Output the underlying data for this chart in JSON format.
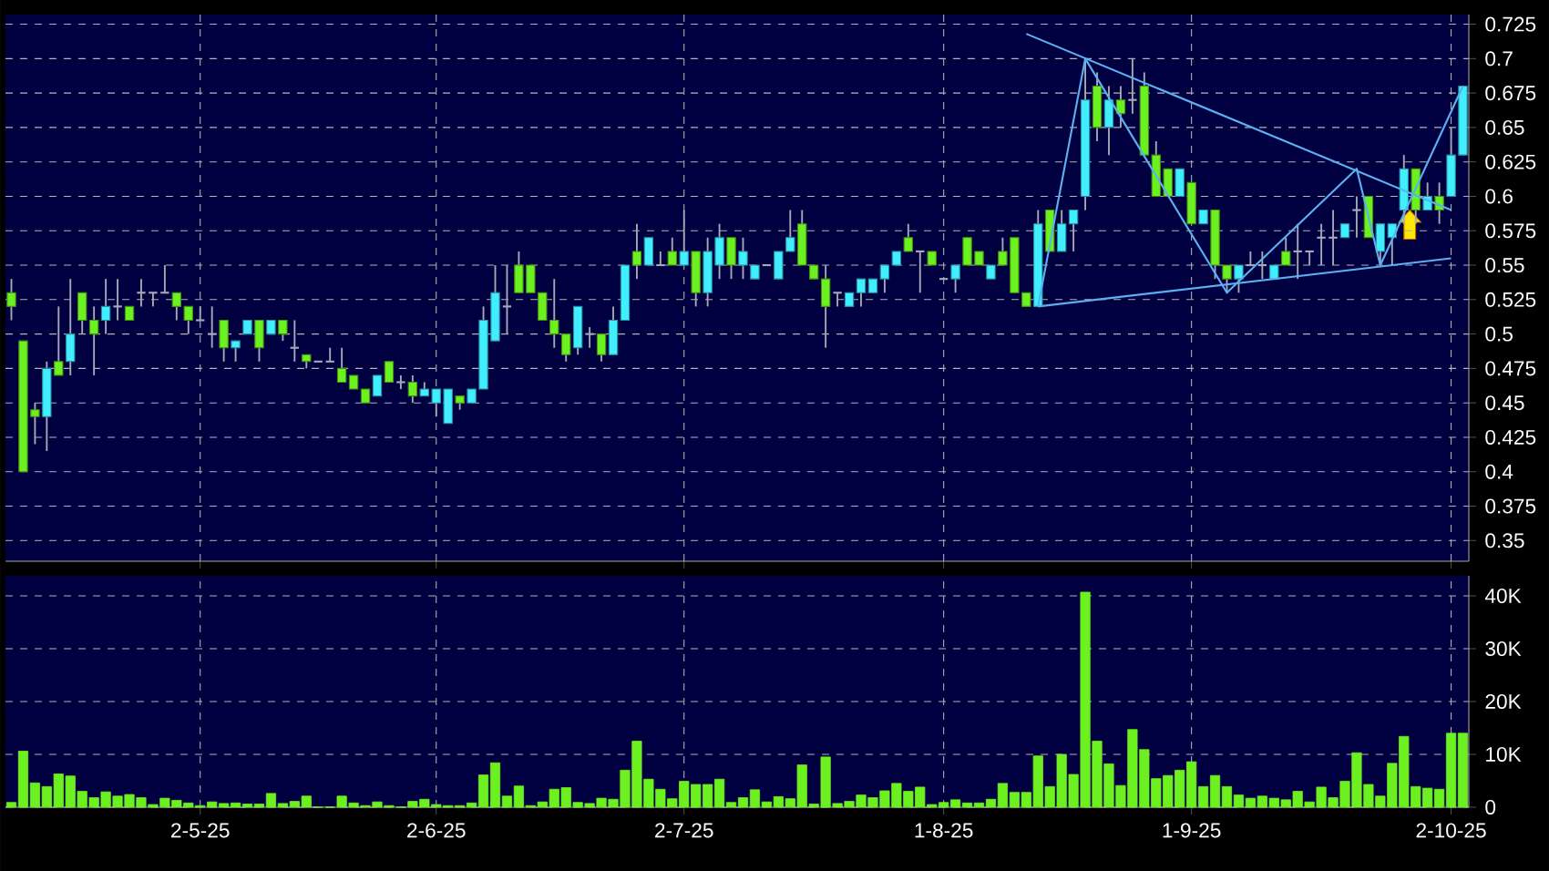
{
  "chart_data": [
    {
      "type": "candlestick",
      "categories": [
        null,
        null,
        null,
        null,
        null,
        null,
        null,
        null,
        null,
        null,
        null,
        null,
        null,
        null,
        null,
        null,
        null,
        null,
        null,
        null,
        null,
        null,
        null,
        null,
        null,
        null,
        null,
        null,
        null,
        null,
        null,
        null,
        null,
        null,
        null,
        null,
        null,
        null,
        null,
        null,
        null,
        null,
        null,
        null,
        null,
        null,
        null,
        null,
        null,
        null,
        null,
        null,
        null,
        null,
        null,
        null,
        null,
        null,
        null,
        null,
        null,
        null,
        null,
        null,
        null,
        null,
        null,
        null,
        null,
        null,
        null,
        null,
        null,
        null,
        null,
        null,
        null,
        null,
        null,
        null,
        null,
        null,
        null,
        null,
        null,
        null,
        null,
        null,
        null,
        null,
        null,
        null,
        null,
        null,
        null,
        null,
        null,
        null,
        null,
        null,
        null,
        null,
        null,
        null,
        null,
        null,
        null,
        null,
        null,
        null,
        null,
        null,
        null,
        null,
        null,
        null,
        null,
        null,
        null,
        null,
        null,
        null,
        null,
        null
      ],
      "ohlc": [
        [
          0.53,
          0.54,
          0.51,
          0.52
        ],
        [
          0.495,
          0.495,
          0.4,
          0.4
        ],
        [
          0.445,
          0.45,
          0.42,
          0.44
        ],
        [
          0.44,
          0.48,
          0.415,
          0.475
        ],
        [
          0.48,
          0.52,
          0.47,
          0.47
        ],
        [
          0.48,
          0.54,
          0.47,
          0.5
        ],
        [
          0.53,
          0.53,
          0.5,
          0.51
        ],
        [
          0.51,
          0.52,
          0.47,
          0.5
        ],
        [
          0.51,
          0.54,
          0.5,
          0.52
        ],
        [
          0.52,
          0.54,
          0.51,
          0.52
        ],
        [
          0.52,
          0.52,
          0.51,
          0.51
        ],
        [
          0.53,
          0.54,
          0.52,
          0.53
        ],
        [
          0.53,
          0.53,
          0.52,
          0.53
        ],
        [
          0.53,
          0.55,
          0.53,
          0.53
        ],
        [
          0.53,
          0.53,
          0.51,
          0.52
        ],
        [
          0.52,
          0.52,
          0.5,
          0.51
        ],
        [
          0.51,
          0.52,
          0.51,
          0.51
        ],
        [
          0.5,
          0.52,
          0.49,
          0.5
        ],
        [
          0.51,
          0.51,
          0.48,
          0.49
        ],
        [
          0.49,
          0.495,
          0.48,
          0.495
        ],
        [
          0.5,
          0.51,
          0.5,
          0.51
        ],
        [
          0.51,
          0.51,
          0.48,
          0.49
        ],
        [
          0.5,
          0.51,
          0.5,
          0.51
        ],
        [
          0.51,
          0.51,
          0.495,
          0.5
        ],
        [
          0.49,
          0.51,
          0.48,
          0.49
        ],
        [
          0.485,
          0.485,
          0.475,
          0.48
        ],
        [
          0.48,
          0.48,
          0.48,
          0.48
        ],
        [
          0.48,
          0.49,
          0.48,
          0.48
        ],
        [
          0.475,
          0.49,
          0.465,
          0.465
        ],
        [
          0.47,
          0.47,
          0.46,
          0.46
        ],
        [
          0.46,
          0.46,
          0.45,
          0.45
        ],
        [
          0.455,
          0.47,
          0.455,
          0.47
        ],
        [
          0.48,
          0.48,
          0.465,
          0.465
        ],
        [
          0.465,
          0.47,
          0.46,
          0.465
        ],
        [
          0.465,
          0.47,
          0.45,
          0.455
        ],
        [
          0.455,
          0.465,
          0.455,
          0.46
        ],
        [
          0.45,
          0.46,
          0.44,
          0.46
        ],
        [
          0.435,
          0.46,
          0.435,
          0.46
        ],
        [
          0.455,
          0.455,
          0.445,
          0.45
        ],
        [
          0.45,
          0.46,
          0.45,
          0.46
        ],
        [
          0.46,
          0.52,
          0.46,
          0.51
        ],
        [
          0.495,
          0.55,
          0.495,
          0.53
        ],
        [
          0.52,
          0.55,
          0.5,
          0.52
        ],
        [
          0.55,
          0.56,
          0.53,
          0.53
        ],
        [
          0.55,
          0.55,
          0.53,
          0.53
        ],
        [
          0.53,
          0.53,
          0.51,
          0.51
        ],
        [
          0.51,
          0.54,
          0.49,
          0.5
        ],
        [
          0.5,
          0.5,
          0.48,
          0.485
        ],
        [
          0.49,
          0.52,
          0.485,
          0.52
        ],
        [
          0.5,
          0.505,
          0.49,
          0.5
        ],
        [
          0.5,
          0.5,
          0.48,
          0.485
        ],
        [
          0.485,
          0.52,
          0.485,
          0.51
        ],
        [
          0.51,
          0.55,
          0.51,
          0.55
        ],
        [
          0.56,
          0.58,
          0.54,
          0.55
        ],
        [
          0.55,
          0.57,
          0.55,
          0.57
        ],
        [
          0.55,
          0.56,
          0.55,
          0.55
        ],
        [
          0.56,
          0.57,
          0.55,
          0.55
        ],
        [
          0.55,
          0.59,
          0.55,
          0.56
        ],
        [
          0.56,
          0.56,
          0.52,
          0.53
        ],
        [
          0.53,
          0.57,
          0.52,
          0.56
        ],
        [
          0.55,
          0.58,
          0.54,
          0.57
        ],
        [
          0.57,
          0.57,
          0.54,
          0.55
        ],
        [
          0.55,
          0.57,
          0.54,
          0.56
        ],
        [
          0.54,
          0.55,
          0.54,
          0.55
        ],
        [
          0.55,
          0.55,
          0.55,
          0.55
        ],
        [
          0.54,
          0.56,
          0.54,
          0.56
        ],
        [
          0.56,
          0.59,
          0.56,
          0.57
        ],
        [
          0.58,
          0.59,
          0.55,
          0.55
        ],
        [
          0.55,
          0.55,
          0.54,
          0.54
        ],
        [
          0.54,
          0.55,
          0.49,
          0.52
        ],
        [
          0.53,
          0.53,
          0.52,
          0.53
        ],
        [
          0.52,
          0.53,
          0.52,
          0.53
        ],
        [
          0.53,
          0.54,
          0.52,
          0.54
        ],
        [
          0.53,
          0.54,
          0.53,
          0.54
        ],
        [
          0.54,
          0.55,
          0.53,
          0.55
        ],
        [
          0.55,
          0.56,
          0.55,
          0.56
        ],
        [
          0.57,
          0.58,
          0.56,
          0.56
        ],
        [
          0.56,
          0.56,
          0.53,
          0.56
        ],
        [
          0.56,
          0.56,
          0.55,
          0.55
        ],
        [
          0.54,
          0.54,
          0.54,
          0.54
        ],
        [
          0.54,
          0.55,
          0.53,
          0.55
        ],
        [
          0.57,
          0.57,
          0.55,
          0.55
        ],
        [
          0.56,
          0.56,
          0.55,
          0.55
        ],
        [
          0.54,
          0.55,
          0.54,
          0.55
        ],
        [
          0.56,
          0.57,
          0.55,
          0.55
        ],
        [
          0.57,
          0.57,
          0.53,
          0.53
        ],
        [
          0.53,
          0.53,
          0.52,
          0.52
        ],
        [
          0.52,
          0.59,
          0.52,
          0.58
        ],
        [
          0.59,
          0.59,
          0.56,
          0.56
        ],
        [
          0.56,
          0.59,
          0.56,
          0.58
        ],
        [
          0.58,
          0.59,
          0.56,
          0.59
        ],
        [
          0.6,
          0.7,
          0.59,
          0.67
        ],
        [
          0.68,
          0.69,
          0.64,
          0.65
        ],
        [
          0.65,
          0.68,
          0.63,
          0.67
        ],
        [
          0.67,
          0.68,
          0.65,
          0.66
        ],
        [
          0.67,
          0.7,
          0.66,
          0.67
        ],
        [
          0.68,
          0.69,
          0.63,
          0.63
        ],
        [
          0.63,
          0.64,
          0.6,
          0.6
        ],
        [
          0.62,
          0.62,
          0.6,
          0.6
        ],
        [
          0.6,
          0.62,
          0.6,
          0.62
        ],
        [
          0.61,
          0.61,
          0.58,
          0.58
        ],
        [
          0.58,
          0.59,
          0.58,
          0.59
        ],
        [
          0.59,
          0.59,
          0.54,
          0.55
        ],
        [
          0.55,
          0.55,
          0.53,
          0.54
        ],
        [
          0.54,
          0.55,
          0.53,
          0.55
        ],
        [
          0.55,
          0.56,
          0.55,
          0.55
        ],
        [
          0.55,
          0.56,
          0.54,
          0.55
        ],
        [
          0.54,
          0.55,
          0.54,
          0.55
        ],
        [
          0.56,
          0.57,
          0.55,
          0.55
        ],
        [
          0.56,
          0.58,
          0.54,
          0.56
        ],
        [
          0.56,
          0.56,
          0.55,
          0.56
        ],
        [
          0.57,
          0.58,
          0.55,
          0.57
        ],
        [
          0.57,
          0.59,
          0.55,
          0.57
        ],
        [
          0.57,
          0.58,
          0.57,
          0.58
        ],
        [
          0.59,
          0.6,
          0.57,
          0.59
        ],
        [
          0.6,
          0.6,
          0.57,
          0.57
        ],
        [
          0.56,
          0.58,
          0.55,
          0.58
        ],
        [
          0.57,
          0.58,
          0.55,
          0.58
        ],
        [
          0.59,
          0.63,
          0.58,
          0.62
        ],
        [
          0.62,
          0.62,
          0.58,
          0.59
        ],
        [
          0.59,
          0.61,
          0.59,
          0.6
        ],
        [
          0.6,
          0.61,
          0.58,
          0.59
        ],
        [
          0.6,
          0.65,
          0.6,
          0.63
        ],
        [
          0.63,
          0.68,
          0.63,
          0.68
        ]
      ],
      "colors": [
        "#6cf020",
        "#6cf020",
        "#6cf020",
        "#40eeff",
        "#6cf020",
        "#40eeff",
        "#6cf020",
        "#6cf020",
        "#40eeff",
        "#a8a8b8",
        "#6cf020",
        "#a8a8b8",
        "#a8a8b8",
        "#a8a8b8",
        "#6cf020",
        "#6cf020",
        "#a8a8b8",
        "#a8a8b8",
        "#6cf020",
        "#40eeff",
        "#40eeff",
        "#6cf020",
        "#40eeff",
        "#6cf020",
        "#a8a8b8",
        "#6cf020",
        "#a8a8b8",
        "#a8a8b8",
        "#6cf020",
        "#6cf020",
        "#6cf020",
        "#40eeff",
        "#6cf020",
        "#a8a8b8",
        "#6cf020",
        "#40eeff",
        "#40eeff",
        "#40eeff",
        "#6cf020",
        "#40eeff",
        "#40eeff",
        "#40eeff",
        "#a8a8b8",
        "#6cf020",
        "#6cf020",
        "#6cf020",
        "#6cf020",
        "#6cf020",
        "#40eeff",
        "#a8a8b8",
        "#6cf020",
        "#40eeff",
        "#40eeff",
        "#6cf020",
        "#40eeff",
        "#a8a8b8",
        "#6cf020",
        "#40eeff",
        "#6cf020",
        "#40eeff",
        "#40eeff",
        "#6cf020",
        "#40eeff",
        "#40eeff",
        "#a8a8b8",
        "#40eeff",
        "#40eeff",
        "#6cf020",
        "#6cf020",
        "#6cf020",
        "#a8a8b8",
        "#40eeff",
        "#40eeff",
        "#40eeff",
        "#40eeff",
        "#40eeff",
        "#6cf020",
        "#a8a8b8",
        "#6cf020",
        "#a8a8b8",
        "#40eeff",
        "#6cf020",
        "#6cf020",
        "#40eeff",
        "#6cf020",
        "#6cf020",
        "#6cf020",
        "#40eeff",
        "#6cf020",
        "#40eeff",
        "#40eeff",
        "#40eeff",
        "#6cf020",
        "#40eeff",
        "#6cf020",
        "#a8a8b8",
        "#6cf020",
        "#6cf020",
        "#6cf020",
        "#40eeff",
        "#6cf020",
        "#40eeff",
        "#6cf020",
        "#6cf020",
        "#40eeff",
        "#a8a8b8",
        "#a8a8b8",
        "#40eeff",
        "#6cf020",
        "#a8a8b8",
        "#a8a8b8",
        "#a8a8b8",
        "#a8a8b8",
        "#40eeff",
        "#a8a8b8",
        "#6cf020",
        "#40eeff",
        "#40eeff",
        "#40eeff",
        "#6cf020",
        "#40eeff",
        "#6cf020",
        "#40eeff",
        "#40eeff"
      ],
      "series": [
        {
          "type": "line",
          "color": "#5ab0f0",
          "values": [
            null,
            null,
            null,
            null,
            null,
            null,
            null,
            null,
            null,
            null,
            null,
            null,
            null,
            null,
            null,
            null,
            null,
            null,
            null,
            null,
            null,
            null,
            null,
            null,
            null,
            null,
            null,
            null,
            null,
            null,
            null,
            null,
            null,
            null,
            null,
            null,
            null,
            null,
            null,
            null,
            null,
            null,
            null,
            null,
            null,
            null,
            null,
            null,
            null,
            null,
            null,
            null,
            null,
            null,
            null,
            null,
            null,
            null,
            null,
            null,
            null,
            null,
            null,
            null,
            null,
            null,
            null,
            null,
            null,
            null,
            null,
            null,
            null,
            null,
            null,
            null,
            null,
            null,
            null,
            null,
            null,
            null,
            null,
            null,
            null,
            null,
            0.718,
            null,
            null,
            null,
            null,
            null,
            null,
            null,
            null,
            null,
            null,
            null,
            null,
            null,
            null,
            null,
            null,
            null,
            null,
            null,
            null,
            null,
            null,
            null,
            null,
            null,
            null,
            null,
            null,
            null,
            null,
            null,
            null,
            null,
            null,
            null,
            0.59,
            null
          ]
        },
        {
          "type": "line",
          "color": "#5ab0f0",
          "values": [
            null,
            null,
            null,
            null,
            null,
            null,
            null,
            null,
            null,
            null,
            null,
            null,
            null,
            null,
            null,
            null,
            null,
            null,
            null,
            null,
            null,
            null,
            null,
            null,
            null,
            null,
            null,
            null,
            null,
            null,
            null,
            null,
            null,
            null,
            null,
            null,
            null,
            null,
            null,
            null,
            null,
            null,
            null,
            null,
            null,
            null,
            null,
            null,
            null,
            null,
            null,
            null,
            null,
            null,
            null,
            null,
            null,
            null,
            null,
            null,
            null,
            null,
            null,
            null,
            null,
            null,
            null,
            null,
            null,
            null,
            null,
            null,
            null,
            null,
            null,
            null,
            null,
            null,
            null,
            null,
            null,
            null,
            null,
            null,
            null,
            null,
            null,
            0.52,
            null,
            null,
            null,
            null,
            null,
            null,
            null,
            null,
            null,
            null,
            null,
            null,
            null,
            null,
            null,
            null,
            null,
            null,
            null,
            null,
            null,
            null,
            null,
            null,
            null,
            null,
            null,
            null,
            null,
            null,
            null,
            null,
            null,
            null,
            0.555,
            null
          ]
        },
        {
          "type": "line",
          "color": "#5ab0f0",
          "values": [
            null,
            null,
            null,
            null,
            null,
            null,
            null,
            null,
            null,
            null,
            null,
            null,
            null,
            null,
            null,
            null,
            null,
            null,
            null,
            null,
            null,
            null,
            null,
            null,
            null,
            null,
            null,
            null,
            null,
            null,
            null,
            null,
            null,
            null,
            null,
            null,
            null,
            null,
            null,
            null,
            null,
            null,
            null,
            null,
            null,
            null,
            null,
            null,
            null,
            null,
            null,
            null,
            null,
            null,
            null,
            null,
            null,
            null,
            null,
            null,
            null,
            null,
            null,
            null,
            null,
            null,
            null,
            null,
            null,
            null,
            null,
            null,
            null,
            null,
            null,
            null,
            null,
            null,
            null,
            null,
            null,
            null,
            null,
            null,
            null,
            null,
            null,
            0.52,
            null,
            null,
            null,
            0.7,
            null,
            null,
            null,
            null,
            null,
            null,
            null,
            null,
            null,
            null,
            null,
            0.53,
            null,
            null,
            null,
            null,
            null,
            null,
            null,
            null,
            null,
            null,
            0.62,
            null,
            0.55,
            null,
            null,
            null,
            null,
            null,
            null,
            0.68
          ]
        }
      ],
      "ylim": [
        0.335,
        0.732
      ],
      "yticks": [
        0.35,
        0.375,
        0.4,
        0.425,
        0.45,
        0.475,
        0.5,
        0.525,
        0.55,
        0.575,
        0.6,
        0.625,
        0.65,
        0.675,
        0.7,
        0.725
      ],
      "grid": true,
      "tick_labels": "y"
    },
    {
      "type": "bar",
      "categories": [
        null,
        null,
        null,
        null,
        null,
        null,
        null,
        null,
        null,
        null,
        null,
        null,
        null,
        null,
        null,
        null,
        "2-5-25",
        null,
        null,
        null,
        null,
        null,
        null,
        null,
        null,
        null,
        null,
        null,
        null,
        null,
        null,
        null,
        null,
        null,
        null,
        null,
        "2-6-25",
        null,
        null,
        null,
        null,
        null,
        null,
        null,
        null,
        null,
        null,
        null,
        null,
        null,
        null,
        null,
        null,
        null,
        null,
        null,
        null,
        "2-7-25",
        null,
        null,
        null,
        null,
        null,
        null,
        null,
        null,
        null,
        null,
        null,
        null,
        null,
        null,
        null,
        null,
        null,
        null,
        null,
        null,
        null,
        "1-8-25",
        null,
        null,
        null,
        null,
        null,
        null,
        null,
        null,
        null,
        null,
        null,
        null,
        null,
        null,
        null,
        null,
        null,
        null,
        null,
        null,
        "1-9-25",
        null,
        null,
        null,
        null,
        null,
        null,
        null,
        null,
        null,
        null,
        null,
        null,
        null,
        null,
        null,
        null,
        null,
        null,
        null,
        null,
        null,
        "2-10-25",
        null
      ],
      "values": [
        900,
        10600,
        4600,
        3900,
        6300,
        5900,
        3000,
        1800,
        2900,
        2100,
        2400,
        1800,
        500,
        1700,
        1300,
        800,
        300,
        1000,
        700,
        800,
        600,
        600,
        2600,
        700,
        1100,
        2100,
        0,
        0,
        2100,
        800,
        300,
        1000,
        300,
        0,
        1100,
        1500,
        500,
        300,
        300,
        800,
        6100,
        8400,
        2100,
        4000,
        300,
        1000,
        3400,
        3700,
        900,
        700,
        1700,
        1500,
        7000,
        12500,
        5300,
        3400,
        1600,
        4900,
        4300,
        4300,
        5300,
        900,
        1800,
        3300,
        1000,
        2000,
        1600,
        8000,
        600,
        9500,
        700,
        1100,
        2300,
        1800,
        3100,
        4500,
        3000,
        3800,
        500,
        900,
        1400,
        800,
        800,
        1500,
        4500,
        2800,
        2800,
        9700,
        3900,
        10000,
        6200,
        40700,
        12500,
        8200,
        4100,
        14700,
        10900,
        5400,
        6000,
        7000,
        8600,
        3900,
        6000,
        3900,
        2300,
        1700,
        2100,
        1700,
        1400,
        3000,
        1000,
        3800,
        1800,
        4900,
        10300,
        4300,
        2100,
        8300,
        13400,
        3900,
        3600,
        3400,
        14000,
        14000
      ],
      "color": "#6cf020",
      "ylim": [
        0,
        43800
      ],
      "yticks": [
        0,
        {
          "value": 10000,
          "label": "10K"
        },
        {
          "value": 20000,
          "label": "20K"
        },
        {
          "value": 30000,
          "label": "30K"
        },
        {
          "value": 40000,
          "label": "40K"
        }
      ],
      "grid": true
    }
  ]
}
